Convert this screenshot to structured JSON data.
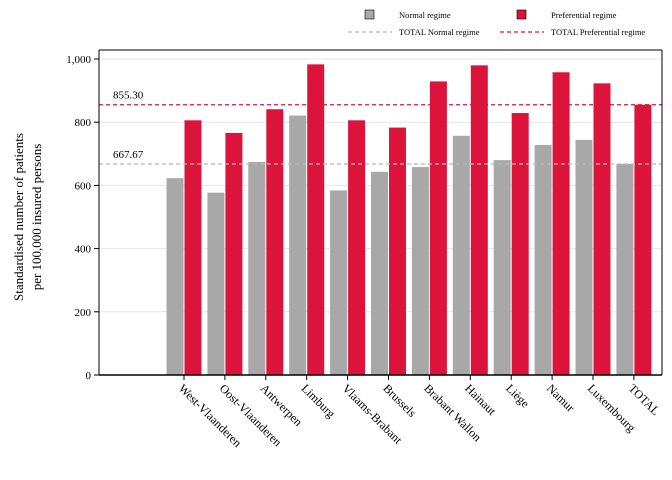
{
  "chart_data": {
    "type": "bar",
    "categories": [
      "West-Vlaanderen",
      "Oost-Vlaanderen",
      "Antwerpen",
      "Limburg",
      "Vlaams-Brabant",
      "Brussels",
      "Brabant Wallon",
      "Hainaut",
      "Liège",
      "Namur",
      "Luxembourg",
      "TOTAL"
    ],
    "series": [
      {
        "name": "Normal regime",
        "color": "#a8a8a8",
        "values": [
          623,
          577,
          674,
          821,
          584,
          643,
          658,
          757,
          680,
          728,
          744,
          667.67
        ]
      },
      {
        "name": "Preferential regime",
        "color": "#dc143c",
        "values": [
          806,
          766,
          841,
          983,
          806,
          783,
          929,
          980,
          829,
          958,
          923,
          855.3
        ]
      }
    ],
    "reference_lines": [
      {
        "name": "TOTAL Normal regime",
        "value": 667.67,
        "label": "667.67",
        "color": "#b8b8b8"
      },
      {
        "name": "TOTAL Preferential regime",
        "value": 855.3,
        "label": "855.30",
        "color": "#dc143c"
      }
    ],
    "ylabel": [
      "Standardised number of patients",
      "per 100,000 insured persons"
    ],
    "xlabel": "",
    "ylim": [
      0,
      1000
    ],
    "yticks": [
      0,
      200,
      400,
      600,
      800,
      1000
    ],
    "ytick_labels": [
      "0",
      "200",
      "400",
      "600",
      "800",
      "1,000"
    ],
    "grid": true,
    "legend_position": "top-right"
  }
}
